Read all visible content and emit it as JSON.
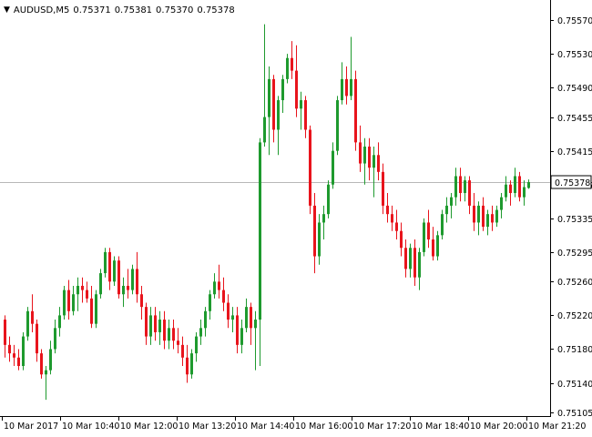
{
  "header": {
    "symbol": "AUDUSD,M5",
    "open": "0.75371",
    "high": "0.75381",
    "low": "0.75370",
    "close": "0.75378"
  },
  "current_price_label": "0.75378",
  "colors": {
    "bull": "#1e9a2e",
    "bear": "#e8141c",
    "axis": "#000000",
    "current_line": "#b8b8b8",
    "background": "#ffffff"
  },
  "chart_data": {
    "type": "candlestick",
    "symbol": "AUDUSD",
    "timeframe": "M5",
    "y_ticks": [
      "0.75570",
      "0.75530",
      "0.75490",
      "0.75455",
      "0.75415",
      "0.75375",
      "0.75335",
      "0.75295",
      "0.75260",
      "0.75220",
      "0.75180",
      "0.75140",
      "0.75105"
    ],
    "x_labels": [
      "10 Mar 2017",
      "10 Mar 10:40",
      "10 Mar 12:00",
      "10 Mar 13:20",
      "10 Mar 14:40",
      "10 Mar 16:00",
      "10 Mar 17:20",
      "10 Mar 18:40",
      "10 Mar 20:00",
      "10 Mar 21:20"
    ],
    "current_price": 0.75378,
    "candles": [
      [
        0.75215,
        0.7522,
        0.7517,
        0.75185
      ],
      [
        0.75185,
        0.75195,
        0.75165,
        0.75175
      ],
      [
        0.75175,
        0.75185,
        0.7516,
        0.7517
      ],
      [
        0.7517,
        0.7518,
        0.75155,
        0.7516
      ],
      [
        0.7516,
        0.752,
        0.75155,
        0.75195
      ],
      [
        0.75195,
        0.7523,
        0.7519,
        0.75225
      ],
      [
        0.75225,
        0.75245,
        0.752,
        0.7521
      ],
      [
        0.7521,
        0.75215,
        0.75165,
        0.75175
      ],
      [
        0.75175,
        0.7518,
        0.75145,
        0.7515
      ],
      [
        0.7515,
        0.7516,
        0.7512,
        0.75155
      ],
      [
        0.75155,
        0.7519,
        0.7515,
        0.7518
      ],
      [
        0.7518,
        0.75215,
        0.75175,
        0.75205
      ],
      [
        0.75205,
        0.7523,
        0.75195,
        0.7522
      ],
      [
        0.7522,
        0.75255,
        0.75215,
        0.7525
      ],
      [
        0.7525,
        0.75262,
        0.75215,
        0.75225
      ],
      [
        0.75225,
        0.75255,
        0.7522,
        0.75245
      ],
      [
        0.75245,
        0.75265,
        0.75225,
        0.75255
      ],
      [
        0.75255,
        0.75265,
        0.75235,
        0.7525
      ],
      [
        0.7525,
        0.7526,
        0.75235,
        0.7524
      ],
      [
        0.7524,
        0.75255,
        0.75205,
        0.7521
      ],
      [
        0.7521,
        0.7525,
        0.75205,
        0.75245
      ],
      [
        0.75245,
        0.75275,
        0.7524,
        0.7527
      ],
      [
        0.7527,
        0.753,
        0.75265,
        0.75295
      ],
      [
        0.75295,
        0.753,
        0.7525,
        0.7526
      ],
      [
        0.7526,
        0.7529,
        0.75255,
        0.75285
      ],
      [
        0.75285,
        0.7529,
        0.7524,
        0.75245
      ],
      [
        0.75245,
        0.75265,
        0.7523,
        0.75255
      ],
      [
        0.75255,
        0.75275,
        0.7524,
        0.7525
      ],
      [
        0.7525,
        0.7528,
        0.75245,
        0.75275
      ],
      [
        0.75275,
        0.75295,
        0.75235,
        0.75245
      ],
      [
        0.75245,
        0.75255,
        0.75215,
        0.7523
      ],
      [
        0.7523,
        0.75235,
        0.75185,
        0.75195
      ],
      [
        0.75195,
        0.7523,
        0.75185,
        0.7522
      ],
      [
        0.7522,
        0.7523,
        0.7519,
        0.752
      ],
      [
        0.752,
        0.75225,
        0.75185,
        0.75215
      ],
      [
        0.75215,
        0.75225,
        0.7518,
        0.7519
      ],
      [
        0.7519,
        0.75215,
        0.7518,
        0.75205
      ],
      [
        0.75205,
        0.75215,
        0.7518,
        0.7519
      ],
      [
        0.7519,
        0.75205,
        0.75175,
        0.75185
      ],
      [
        0.75185,
        0.75195,
        0.7516,
        0.7517
      ],
      [
        0.7517,
        0.75185,
        0.7514,
        0.7515
      ],
      [
        0.7515,
        0.7518,
        0.75145,
        0.75175
      ],
      [
        0.75175,
        0.752,
        0.75165,
        0.75195
      ],
      [
        0.75195,
        0.75215,
        0.75185,
        0.75205
      ],
      [
        0.75205,
        0.7523,
        0.75195,
        0.75225
      ],
      [
        0.75225,
        0.7525,
        0.75215,
        0.75245
      ],
      [
        0.75245,
        0.7527,
        0.7524,
        0.7526
      ],
      [
        0.7526,
        0.7528,
        0.7524,
        0.7525
      ],
      [
        0.7525,
        0.75265,
        0.75225,
        0.75235
      ],
      [
        0.75235,
        0.75245,
        0.75205,
        0.75215
      ],
      [
        0.75215,
        0.7523,
        0.752,
        0.7522
      ],
      [
        0.7522,
        0.7523,
        0.75175,
        0.75185
      ],
      [
        0.75185,
        0.75215,
        0.75175,
        0.75205
      ],
      [
        0.75205,
        0.7524,
        0.752,
        0.7523
      ],
      [
        0.7523,
        0.75235,
        0.75185,
        0.75205
      ],
      [
        0.75205,
        0.75225,
        0.75155,
        0.75215
      ],
      [
        0.75215,
        0.7543,
        0.7516,
        0.75425
      ],
      [
        0.75425,
        0.75565,
        0.7542,
        0.75455
      ],
      [
        0.75455,
        0.75515,
        0.7541,
        0.755
      ],
      [
        0.755,
        0.75505,
        0.75425,
        0.7544
      ],
      [
        0.7544,
        0.7548,
        0.7541,
        0.75475
      ],
      [
        0.75475,
        0.75505,
        0.7546,
        0.755
      ],
      [
        0.755,
        0.7553,
        0.75495,
        0.75525
      ],
      [
        0.75525,
        0.75545,
        0.755,
        0.7551
      ],
      [
        0.7551,
        0.7554,
        0.75455,
        0.75465
      ],
      [
        0.75465,
        0.75485,
        0.7544,
        0.75475
      ],
      [
        0.75475,
        0.7548,
        0.7543,
        0.7544
      ],
      [
        0.7544,
        0.75445,
        0.7534,
        0.7535
      ],
      [
        0.7535,
        0.75365,
        0.7527,
        0.7529
      ],
      [
        0.7529,
        0.7534,
        0.7528,
        0.7533
      ],
      [
        0.7533,
        0.7535,
        0.7531,
        0.7534
      ],
      [
        0.7534,
        0.7538,
        0.75335,
        0.75375
      ],
      [
        0.75375,
        0.75425,
        0.7537,
        0.75415
      ],
      [
        0.75415,
        0.7548,
        0.7541,
        0.75475
      ],
      [
        0.75475,
        0.7552,
        0.7547,
        0.755
      ],
      [
        0.755,
        0.75515,
        0.7547,
        0.7548
      ],
      [
        0.7548,
        0.7555,
        0.75475,
        0.755
      ],
      [
        0.755,
        0.7551,
        0.75415,
        0.75425
      ],
      [
        0.75425,
        0.75445,
        0.7539,
        0.754
      ],
      [
        0.754,
        0.7543,
        0.75375,
        0.7542
      ],
      [
        0.7542,
        0.7543,
        0.7538,
        0.75395
      ],
      [
        0.75395,
        0.7542,
        0.7536,
        0.7541
      ],
      [
        0.7541,
        0.75425,
        0.7538,
        0.7539
      ],
      [
        0.7539,
        0.754,
        0.7534,
        0.7535
      ],
      [
        0.7535,
        0.75365,
        0.7533,
        0.7534
      ],
      [
        0.7534,
        0.7535,
        0.7532,
        0.7533
      ],
      [
        0.7533,
        0.75345,
        0.7531,
        0.7532
      ],
      [
        0.7532,
        0.7533,
        0.7529,
        0.753
      ],
      [
        0.753,
        0.7531,
        0.75265,
        0.75275
      ],
      [
        0.75275,
        0.75305,
        0.75265,
        0.753
      ],
      [
        0.753,
        0.7531,
        0.75255,
        0.75265
      ],
      [
        0.75265,
        0.753,
        0.7525,
        0.75295
      ],
      [
        0.75295,
        0.75335,
        0.7529,
        0.7533
      ],
      [
        0.7533,
        0.75345,
        0.753,
        0.7531
      ],
      [
        0.7531,
        0.75325,
        0.75285,
        0.7529
      ],
      [
        0.7529,
        0.7532,
        0.75285,
        0.75315
      ],
      [
        0.75315,
        0.75345,
        0.7531,
        0.7534
      ],
      [
        0.7534,
        0.7536,
        0.7533,
        0.7535
      ],
      [
        0.7535,
        0.75365,
        0.75335,
        0.7536
      ],
      [
        0.7536,
        0.75395,
        0.7535,
        0.75385
      ],
      [
        0.75385,
        0.75395,
        0.75355,
        0.75365
      ],
      [
        0.75365,
        0.75385,
        0.75355,
        0.7538
      ],
      [
        0.7538,
        0.75385,
        0.7534,
        0.7535
      ],
      [
        0.7535,
        0.75365,
        0.7532,
        0.7533
      ],
      [
        0.7533,
        0.75355,
        0.75315,
        0.7535
      ],
      [
        0.7535,
        0.7536,
        0.7532,
        0.75325
      ],
      [
        0.75325,
        0.75345,
        0.75315,
        0.7534
      ],
      [
        0.7534,
        0.7535,
        0.7532,
        0.7533
      ],
      [
        0.7533,
        0.7535,
        0.75325,
        0.75345
      ],
      [
        0.75345,
        0.75365,
        0.75335,
        0.7536
      ],
      [
        0.7536,
        0.75385,
        0.75355,
        0.75375
      ],
      [
        0.75375,
        0.7538,
        0.7535,
        0.75365
      ],
      [
        0.75365,
        0.75395,
        0.7536,
        0.75385
      ],
      [
        0.75385,
        0.7539,
        0.75355,
        0.7536
      ],
      [
        0.7536,
        0.7538,
        0.7535,
        0.75372
      ],
      [
        0.75371,
        0.75381,
        0.7537,
        0.75378
      ]
    ]
  }
}
